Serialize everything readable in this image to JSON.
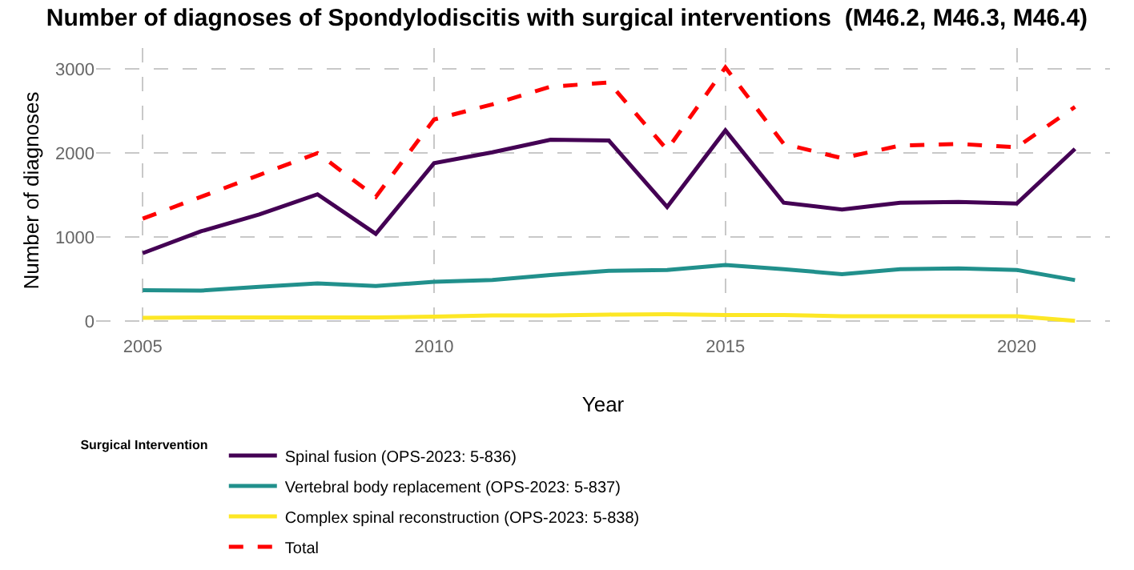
{
  "chart_data": {
    "type": "line",
    "title": "Number of diagnoses of Spondylodiscitis with surgical interventions  (M46.2, M46.3, M46.4)",
    "xlabel": "Year",
    "ylabel": "Number of diagnoses",
    "legend_title": "Surgical Intervention",
    "x": [
      2005,
      2006,
      2007,
      2008,
      2009,
      2010,
      2011,
      2012,
      2013,
      2014,
      2015,
      2016,
      2017,
      2018,
      2019,
      2020,
      2021
    ],
    "series": [
      {
        "name": "Spinal fusion (OPS-2023: 5-836)",
        "color": "#440154",
        "values": [
          810,
          1070,
          1270,
          1510,
          1040,
          1880,
          2010,
          2160,
          2150,
          1360,
          2270,
          1410,
          1330,
          1410,
          1420,
          1400,
          2050
        ]
      },
      {
        "name": "Vertebral body replacement (OPS-2023: 5-837)",
        "color": "#21908c",
        "values": [
          370,
          365,
          410,
          450,
          420,
          470,
          490,
          550,
          600,
          610,
          670,
          620,
          560,
          620,
          630,
          610,
          490
        ]
      },
      {
        "name": "Complex spinal reconstruction (OPS-2023: 5-838)",
        "color": "#fde725",
        "values": [
          40,
          45,
          45,
          45,
          45,
          55,
          70,
          70,
          80,
          85,
          75,
          75,
          60,
          60,
          60,
          60,
          5
        ]
      },
      {
        "name": "Total",
        "color": "#ff0000",
        "line_style": "dashed",
        "values": [
          1220,
          1480,
          1740,
          2000,
          1480,
          2400,
          2580,
          2790,
          2840,
          2040,
          3020,
          2110,
          1940,
          2090,
          2110,
          2070,
          2550
        ]
      }
    ],
    "xlim": [
      2004.2,
      2021.6
    ],
    "xticks": [
      2005,
      2010,
      2015,
      2020
    ],
    "ylim": [
      -140,
      3250
    ],
    "yticks": [
      0,
      1000,
      2000,
      3000
    ],
    "grid": true,
    "legend": "bottom",
    "line_style": "solid",
    "marker": "none"
  }
}
